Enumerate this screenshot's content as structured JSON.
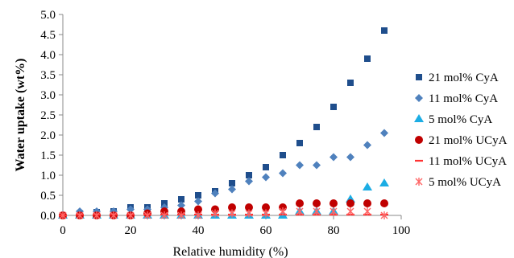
{
  "chart_data": {
    "type": "scatter",
    "title": "",
    "xlabel": "Relative humidity (%)",
    "ylabel": "Water uptake (wt%)",
    "xlim": [
      0,
      100
    ],
    "ylim": [
      0,
      5.0
    ],
    "x_ticks": [
      0,
      20,
      40,
      60,
      80,
      100
    ],
    "y_ticks": [
      0.0,
      0.5,
      1.0,
      1.5,
      2.0,
      2.5,
      3.0,
      3.5,
      4.0,
      4.5,
      5.0
    ],
    "y_tick_labels": [
      "0.0",
      "0.5",
      "1.0",
      "1.5",
      "2.0",
      "2.5",
      "3.0",
      "3.5",
      "4.0",
      "4.5",
      "5.0"
    ],
    "grid": false,
    "legend_position": "right",
    "series": [
      {
        "name": "21 mol% CyA",
        "marker": "square",
        "color": "#1f4e8c",
        "points": [
          [
            0,
            0.0
          ],
          [
            5,
            0.05
          ],
          [
            10,
            0.08
          ],
          [
            15,
            0.1
          ],
          [
            20,
            0.2
          ],
          [
            25,
            0.2
          ],
          [
            30,
            0.3
          ],
          [
            35,
            0.4
          ],
          [
            40,
            0.5
          ],
          [
            45,
            0.6
          ],
          [
            50,
            0.8
          ],
          [
            55,
            1.0
          ],
          [
            60,
            1.2
          ],
          [
            65,
            1.5
          ],
          [
            70,
            1.8
          ],
          [
            75,
            2.2
          ],
          [
            80,
            2.7
          ],
          [
            85,
            3.3
          ],
          [
            90,
            3.9
          ],
          [
            95,
            4.6
          ]
        ]
      },
      {
        "name": "11 mol% CyA",
        "marker": "diamond",
        "color": "#4f81bd",
        "points": [
          [
            0,
            0.0
          ],
          [
            5,
            0.1
          ],
          [
            10,
            0.1
          ],
          [
            15,
            0.1
          ],
          [
            20,
            0.15
          ],
          [
            25,
            0.15
          ],
          [
            30,
            0.2
          ],
          [
            35,
            0.25
          ],
          [
            40,
            0.35
          ],
          [
            45,
            0.55
          ],
          [
            50,
            0.65
          ],
          [
            55,
            0.85
          ],
          [
            60,
            0.95
          ],
          [
            65,
            1.05
          ],
          [
            70,
            1.25
          ],
          [
            75,
            1.25
          ],
          [
            80,
            1.45
          ],
          [
            85,
            1.45
          ],
          [
            90,
            1.75
          ],
          [
            95,
            2.05
          ]
        ]
      },
      {
        "name": "5 mol% CyA",
        "marker": "triangle",
        "color": "#1cade4",
        "points": [
          [
            0,
            0.0
          ],
          [
            5,
            0.0
          ],
          [
            10,
            0.0
          ],
          [
            15,
            0.0
          ],
          [
            20,
            0.0
          ],
          [
            25,
            0.0
          ],
          [
            30,
            0.0
          ],
          [
            35,
            0.0
          ],
          [
            40,
            0.0
          ],
          [
            45,
            0.0
          ],
          [
            50,
            0.0
          ],
          [
            55,
            0.0
          ],
          [
            60,
            0.0
          ],
          [
            65,
            0.0
          ],
          [
            70,
            0.1
          ],
          [
            75,
            0.1
          ],
          [
            80,
            0.1
          ],
          [
            85,
            0.4
          ],
          [
            90,
            0.7
          ],
          [
            95,
            0.8
          ]
        ]
      },
      {
        "name": "21 mol% UCyA",
        "marker": "circle",
        "color": "#c00000",
        "points": [
          [
            0,
            0.0
          ],
          [
            5,
            0.0
          ],
          [
            10,
            0.0
          ],
          [
            15,
            0.0
          ],
          [
            20,
            0.0
          ],
          [
            25,
            0.05
          ],
          [
            30,
            0.1
          ],
          [
            35,
            0.1
          ],
          [
            40,
            0.15
          ],
          [
            45,
            0.15
          ],
          [
            50,
            0.2
          ],
          [
            55,
            0.2
          ],
          [
            60,
            0.2
          ],
          [
            65,
            0.2
          ],
          [
            70,
            0.3
          ],
          [
            75,
            0.3
          ],
          [
            80,
            0.3
          ],
          [
            85,
            0.3
          ],
          [
            90,
            0.3
          ],
          [
            95,
            0.3
          ]
        ]
      },
      {
        "name": "11 mol% UCyA",
        "marker": "dash",
        "color": "#ff3333",
        "points": [
          [
            0,
            0.0
          ],
          [
            5,
            0.02
          ],
          [
            10,
            0.02
          ],
          [
            15,
            0.02
          ],
          [
            20,
            0.02
          ],
          [
            25,
            0.02
          ],
          [
            30,
            0.02
          ],
          [
            35,
            0.02
          ],
          [
            40,
            0.02
          ],
          [
            45,
            0.02
          ],
          [
            50,
            0.02
          ],
          [
            55,
            0.02
          ],
          [
            60,
            0.02
          ],
          [
            65,
            0.02
          ],
          [
            70,
            0.02
          ],
          [
            75,
            0.02
          ],
          [
            80,
            0.02
          ],
          [
            85,
            0.02
          ],
          [
            90,
            0.02
          ],
          [
            95,
            0.02
          ]
        ]
      },
      {
        "name": "5 mol% UCyA",
        "marker": "asterisk",
        "color": "#ff6666",
        "points": [
          [
            0,
            0.0
          ],
          [
            5,
            0.0
          ],
          [
            10,
            0.0
          ],
          [
            15,
            0.0
          ],
          [
            20,
            0.0
          ],
          [
            25,
            0.0
          ],
          [
            30,
            0.0
          ],
          [
            35,
            0.0
          ],
          [
            40,
            0.0
          ],
          [
            45,
            0.05
          ],
          [
            50,
            0.05
          ],
          [
            55,
            0.05
          ],
          [
            60,
            0.05
          ],
          [
            65,
            0.1
          ],
          [
            70,
            0.1
          ],
          [
            75,
            0.1
          ],
          [
            80,
            0.1
          ],
          [
            85,
            0.1
          ],
          [
            90,
            0.1
          ],
          [
            95,
            0.0
          ]
        ]
      }
    ]
  }
}
